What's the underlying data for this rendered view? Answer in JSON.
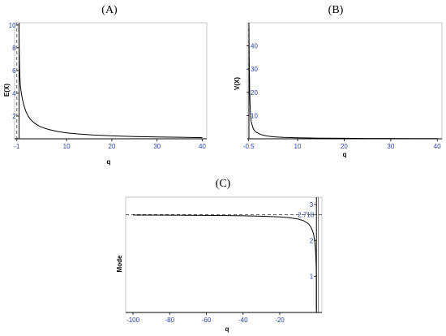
{
  "chart_data": [
    {
      "panel": "(A)",
      "type": "line",
      "xlabel": "q",
      "ylabel": "E(X)",
      "xlim": [
        -1.5,
        41
      ],
      "ylim": [
        0,
        10.2
      ],
      "xticks": [
        -1,
        10,
        20,
        30,
        40
      ],
      "yticks": [
        2,
        4,
        6,
        8,
        10
      ],
      "asymptote_x": -1,
      "series": [
        {
          "x": [
            -0.55,
            -0.5,
            -0.4,
            -0.3,
            -0.2,
            0,
            0.25,
            0.5,
            1,
            1.5,
            2,
            3,
            4,
            5,
            6,
            8,
            10,
            13,
            16,
            20,
            25,
            30,
            35,
            40
          ],
          "y": [
            10,
            8.3,
            6.3,
            5.2,
            4.6,
            4.0,
            3.45,
            3.0,
            2.4,
            2.0,
            1.7,
            1.35,
            1.1,
            0.95,
            0.82,
            0.64,
            0.52,
            0.41,
            0.33,
            0.26,
            0.2,
            0.16,
            0.13,
            0.1
          ]
        }
      ]
    },
    {
      "panel": "(B)",
      "type": "line",
      "xlabel": "q",
      "ylabel": "V(X)",
      "xlim": [
        -0.8,
        41
      ],
      "ylim": [
        0,
        50
      ],
      "xticks": [
        -0.5,
        10,
        20,
        30,
        40
      ],
      "yticks": [
        10,
        20,
        30,
        40
      ],
      "asymptote_x": -0.5,
      "series": [
        {
          "x": [
            -0.45,
            -0.4,
            -0.3,
            -0.2,
            -0.1,
            0,
            0.5,
            1,
            2,
            3,
            4,
            5,
            7,
            10,
            15,
            20,
            25,
            30,
            35,
            40
          ],
          "y": [
            48,
            35,
            21,
            14,
            10,
            7.6,
            4.2,
            3.0,
            1.9,
            1.35,
            1.05,
            0.85,
            0.6,
            0.42,
            0.27,
            0.2,
            0.15,
            0.12,
            0.1,
            0.08
          ]
        }
      ]
    },
    {
      "panel": "(C)",
      "type": "line",
      "xlabel": "q",
      "ylabel": "Mode",
      "xlim": [
        -104,
        3
      ],
      "ylim": [
        0,
        3.2
      ],
      "xticks": [
        -100,
        -80,
        -60,
        -40,
        -20
      ],
      "yticks": [
        1,
        2,
        3
      ],
      "asymptote_y": 2.718,
      "asymptote_y_label": "2.718",
      "series": [
        {
          "x": [
            -100,
            -80,
            -60,
            -40,
            -30,
            -20,
            -15,
            -10,
            -7,
            -5,
            -4,
            -3,
            -2,
            -1.5,
            -1,
            -0.8,
            -0.6,
            -0.4,
            -0.25,
            -0.15,
            -0.08,
            -0.03,
            0
          ],
          "y": [
            2.705,
            2.701,
            2.696,
            2.685,
            2.674,
            2.653,
            2.633,
            2.594,
            2.548,
            2.488,
            2.441,
            2.37,
            2.25,
            2.16,
            2.0,
            1.91,
            1.8,
            1.63,
            1.46,
            1.3,
            1.15,
            0.8,
            0.05
          ]
        }
      ]
    }
  ]
}
